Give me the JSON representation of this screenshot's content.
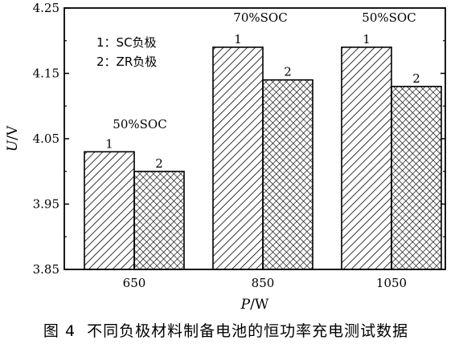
{
  "chart_data": {
    "type": "bar",
    "xlabel_var": "P",
    "xlabel_unit": "/W",
    "ylabel_var": "U",
    "ylabel_unit": "/V",
    "ylim": [
      3.85,
      4.25
    ],
    "yticks": [
      "3.85",
      "3.95",
      "4.05",
      "4.15",
      "4.25"
    ],
    "categories": [
      "650",
      "850",
      "1050"
    ],
    "series": [
      {
        "name": "SC负极",
        "label": "1",
        "pattern": "hatch-diagonal",
        "values": [
          4.03,
          4.19,
          4.19
        ]
      },
      {
        "name": "ZR负极",
        "label": "2",
        "pattern": "crosshatch",
        "values": [
          4.0,
          4.14,
          4.13
        ]
      }
    ],
    "legend": [
      "1：SC负极",
      "2：ZR负极"
    ],
    "legend_position": "top-left",
    "group_annotations": [
      "50%SOC",
      "70%SOC",
      "50%SOC"
    ],
    "grid": false
  },
  "figure_caption": {
    "number": "图 4",
    "text": "不同负极材料制备电池的恒功率充电测试数据"
  },
  "colors": {
    "axis": "#000000",
    "fill": "#ffffff"
  }
}
